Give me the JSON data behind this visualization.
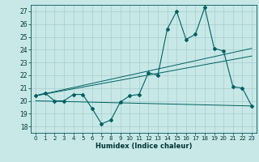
{
  "title": "",
  "xlabel": "Humidex (Indice chaleur)",
  "bg_color": "#c8e8e8",
  "grid_color": "#a8cccc",
  "line_color": "#006060",
  "xlim": [
    -0.5,
    23.5
  ],
  "ylim": [
    17.5,
    27.5
  ],
  "yticks": [
    18,
    19,
    20,
    21,
    22,
    23,
    24,
    25,
    26,
    27
  ],
  "xticks": [
    0,
    1,
    2,
    3,
    4,
    5,
    6,
    7,
    8,
    9,
    10,
    11,
    12,
    13,
    14,
    15,
    16,
    17,
    18,
    19,
    20,
    21,
    22,
    23
  ],
  "series1_x": [
    0,
    1,
    2,
    3,
    4,
    5,
    6,
    7,
    8,
    9,
    10,
    11,
    12,
    13,
    14,
    15,
    16,
    17,
    18,
    19,
    20,
    21,
    22,
    23
  ],
  "series1_y": [
    20.4,
    20.6,
    20.0,
    20.0,
    20.5,
    20.5,
    19.4,
    18.2,
    18.5,
    19.9,
    20.4,
    20.5,
    22.2,
    22.0,
    25.6,
    27.0,
    24.8,
    25.2,
    27.3,
    24.1,
    23.9,
    21.1,
    21.0,
    19.6
  ],
  "series2_x": [
    0,
    23
  ],
  "series2_y": [
    20.4,
    24.1
  ],
  "series3_x": [
    0,
    23
  ],
  "series3_y": [
    20.4,
    23.5
  ],
  "series4_x": [
    0,
    23
  ],
  "series4_y": [
    20.0,
    19.6
  ]
}
